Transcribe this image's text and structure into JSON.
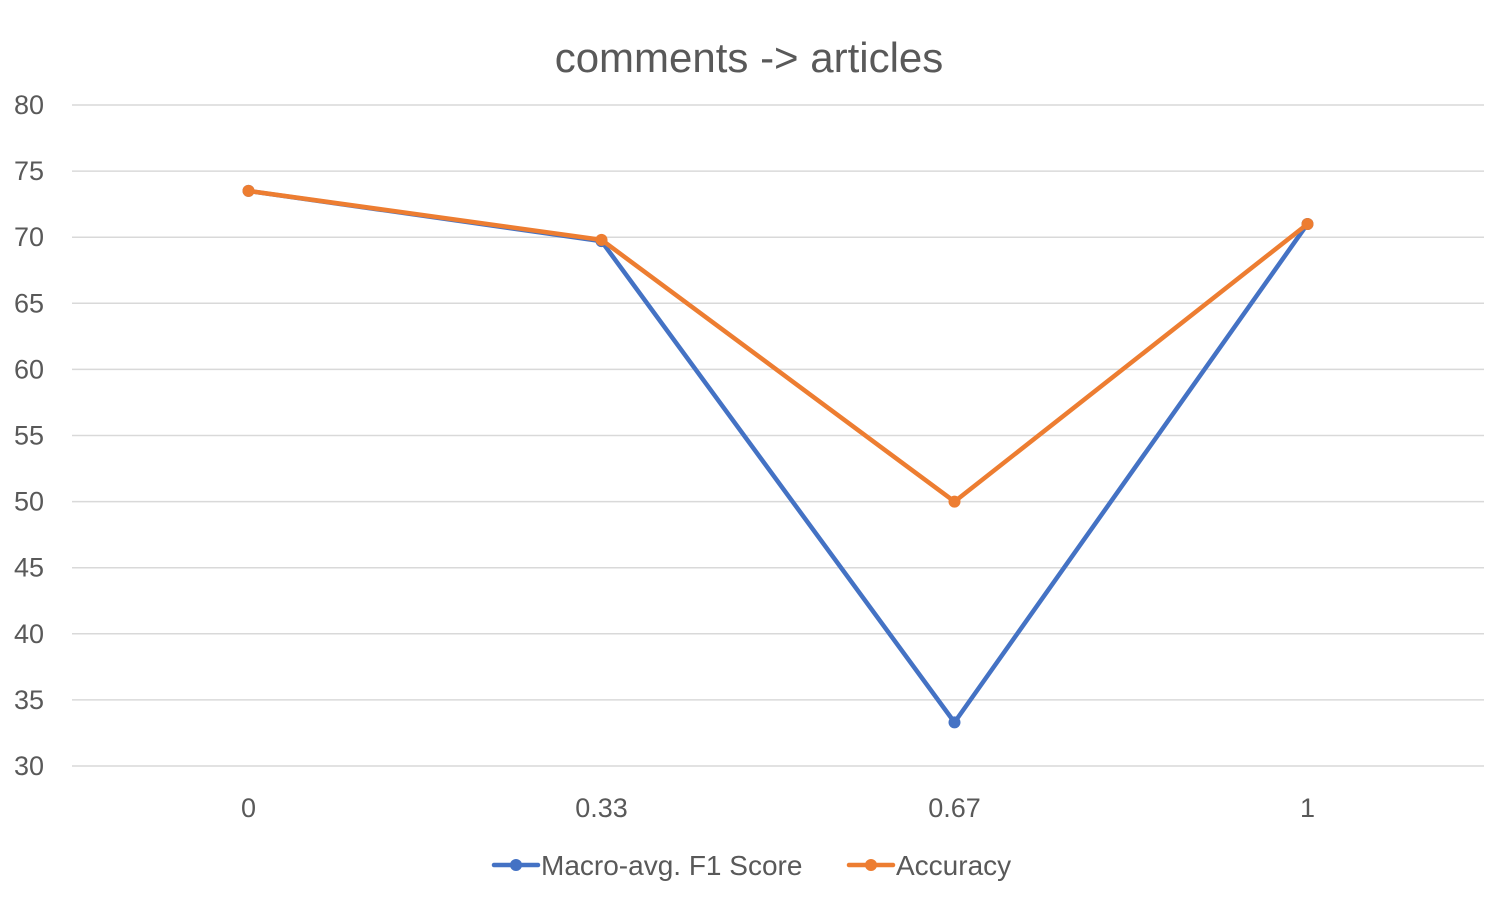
{
  "chart_data": {
    "type": "line",
    "title": "comments -> articles",
    "xlabel": "",
    "ylabel": "",
    "categories": [
      "0",
      "0.33",
      "0.67",
      "1"
    ],
    "ylim": [
      30,
      80
    ],
    "yticks": [
      30,
      35,
      40,
      45,
      50,
      55,
      60,
      65,
      70,
      75,
      80
    ],
    "grid": true,
    "legend_position": "bottom",
    "series": [
      {
        "name": "Macro-avg. F1 Score",
        "color": "#4472C4",
        "values": [
          73.5,
          69.7,
          33.3,
          71.0
        ]
      },
      {
        "name": "Accuracy",
        "color": "#ED7D31",
        "values": [
          73.5,
          69.8,
          50.0,
          71.0
        ]
      }
    ]
  }
}
